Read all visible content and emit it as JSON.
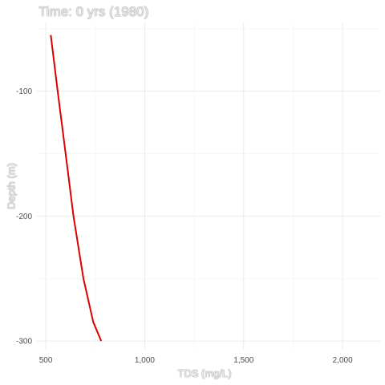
{
  "chart_data": {
    "type": "line",
    "title": "Time: 0 yrs (1980)",
    "xlabel": "TDS (mg/L)",
    "ylabel": "Depth (m)",
    "xlim": [
      455,
      2190
    ],
    "ylim": [
      -307,
      -45
    ],
    "x_ticks": [
      500,
      1000,
      1500,
      2000
    ],
    "x_tick_labels": [
      "500",
      "1,000",
      "1,500",
      "2,000"
    ],
    "y_ticks": [
      -300,
      -200,
      -100
    ],
    "y_tick_labels": [
      "-300",
      "-200",
      "-100"
    ],
    "grid": true,
    "series": [
      {
        "color": "#dd0000",
        "points": [
          {
            "x": 525,
            "y": -55
          },
          {
            "x": 560,
            "y": -100
          },
          {
            "x": 600,
            "y": -150
          },
          {
            "x": 640,
            "y": -200
          },
          {
            "x": 690,
            "y": -250
          },
          {
            "x": 740,
            "y": -285
          },
          {
            "x": 780,
            "y": -300
          }
        ]
      }
    ]
  }
}
